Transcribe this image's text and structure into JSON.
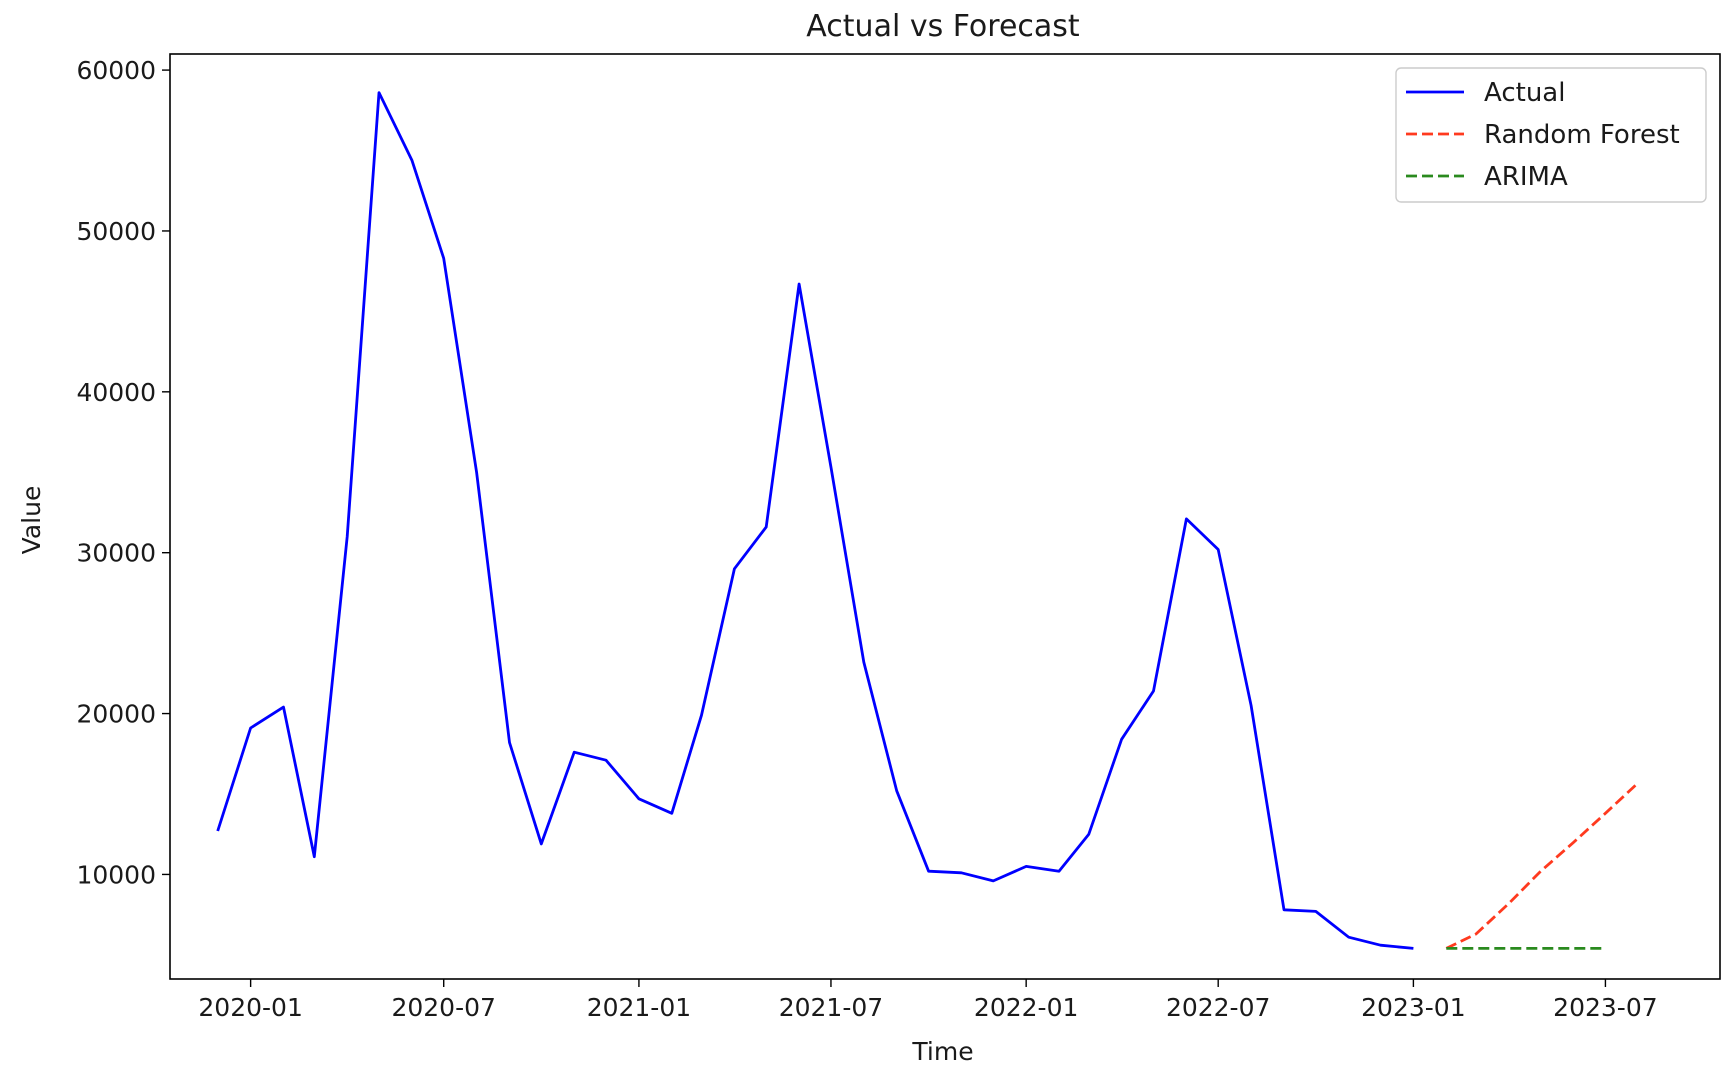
{
  "chart_data": {
    "type": "line",
    "title": "Actual vs Forecast",
    "xlabel": "Time",
    "ylabel": "Value",
    "x_ticks": [
      "2020-01",
      "2020-07",
      "2021-01",
      "2021-07",
      "2022-01",
      "2022-07",
      "2023-01",
      "2023-07"
    ],
    "y_ticks": [
      10000,
      20000,
      30000,
      40000,
      50000,
      60000
    ],
    "xlim": [
      "2019-10-17",
      "2023-10-17"
    ],
    "ylim": [
      3500,
      61000
    ],
    "grid": false,
    "legend_position": "top-right",
    "series": [
      {
        "name": "Actual",
        "color": "#0000ff",
        "style": "solid",
        "x": [
          "2019-12",
          "2020-01",
          "2020-02",
          "2020-03",
          "2020-04",
          "2020-05",
          "2020-06",
          "2020-07",
          "2020-08",
          "2020-09",
          "2020-10",
          "2020-11",
          "2020-12",
          "2021-01",
          "2021-02",
          "2021-03",
          "2021-04",
          "2021-05",
          "2021-06",
          "2021-07",
          "2021-08",
          "2021-09",
          "2021-10",
          "2021-11",
          "2021-12",
          "2022-01",
          "2022-02",
          "2022-03",
          "2022-04",
          "2022-05",
          "2022-06",
          "2022-07",
          "2022-08",
          "2022-09",
          "2022-10",
          "2022-11",
          "2022-12",
          "2023-01"
        ],
        "values": [
          12700,
          19100,
          20400,
          11100,
          31000,
          58600,
          54400,
          48300,
          35000,
          18200,
          11900,
          17600,
          17100,
          14700,
          13800,
          19900,
          29000,
          31600,
          46700,
          35300,
          23200,
          15200,
          10200,
          10100,
          9600,
          10500,
          10200,
          12500,
          18400,
          21400,
          32100,
          30200,
          20500,
          7800,
          7700,
          6100,
          5600,
          5400
        ]
      },
      {
        "name": "Random Forest",
        "color": "#ff3a1f",
        "style": "dashed",
        "x": [
          "2023-02",
          "2023-03",
          "2023-04",
          "2023-05",
          "2023-06",
          "2023-07",
          "2023-08"
        ],
        "values": [
          5400,
          6300,
          8200,
          10200,
          12000,
          13800,
          15700
        ]
      },
      {
        "name": "ARIMA",
        "color": "#2a8a1e",
        "style": "dashed",
        "x": [
          "2023-02",
          "2023-03",
          "2023-04",
          "2023-05",
          "2023-06",
          "2023-07"
        ],
        "values": [
          5400,
          5400,
          5400,
          5400,
          5400,
          5400
        ]
      }
    ]
  }
}
